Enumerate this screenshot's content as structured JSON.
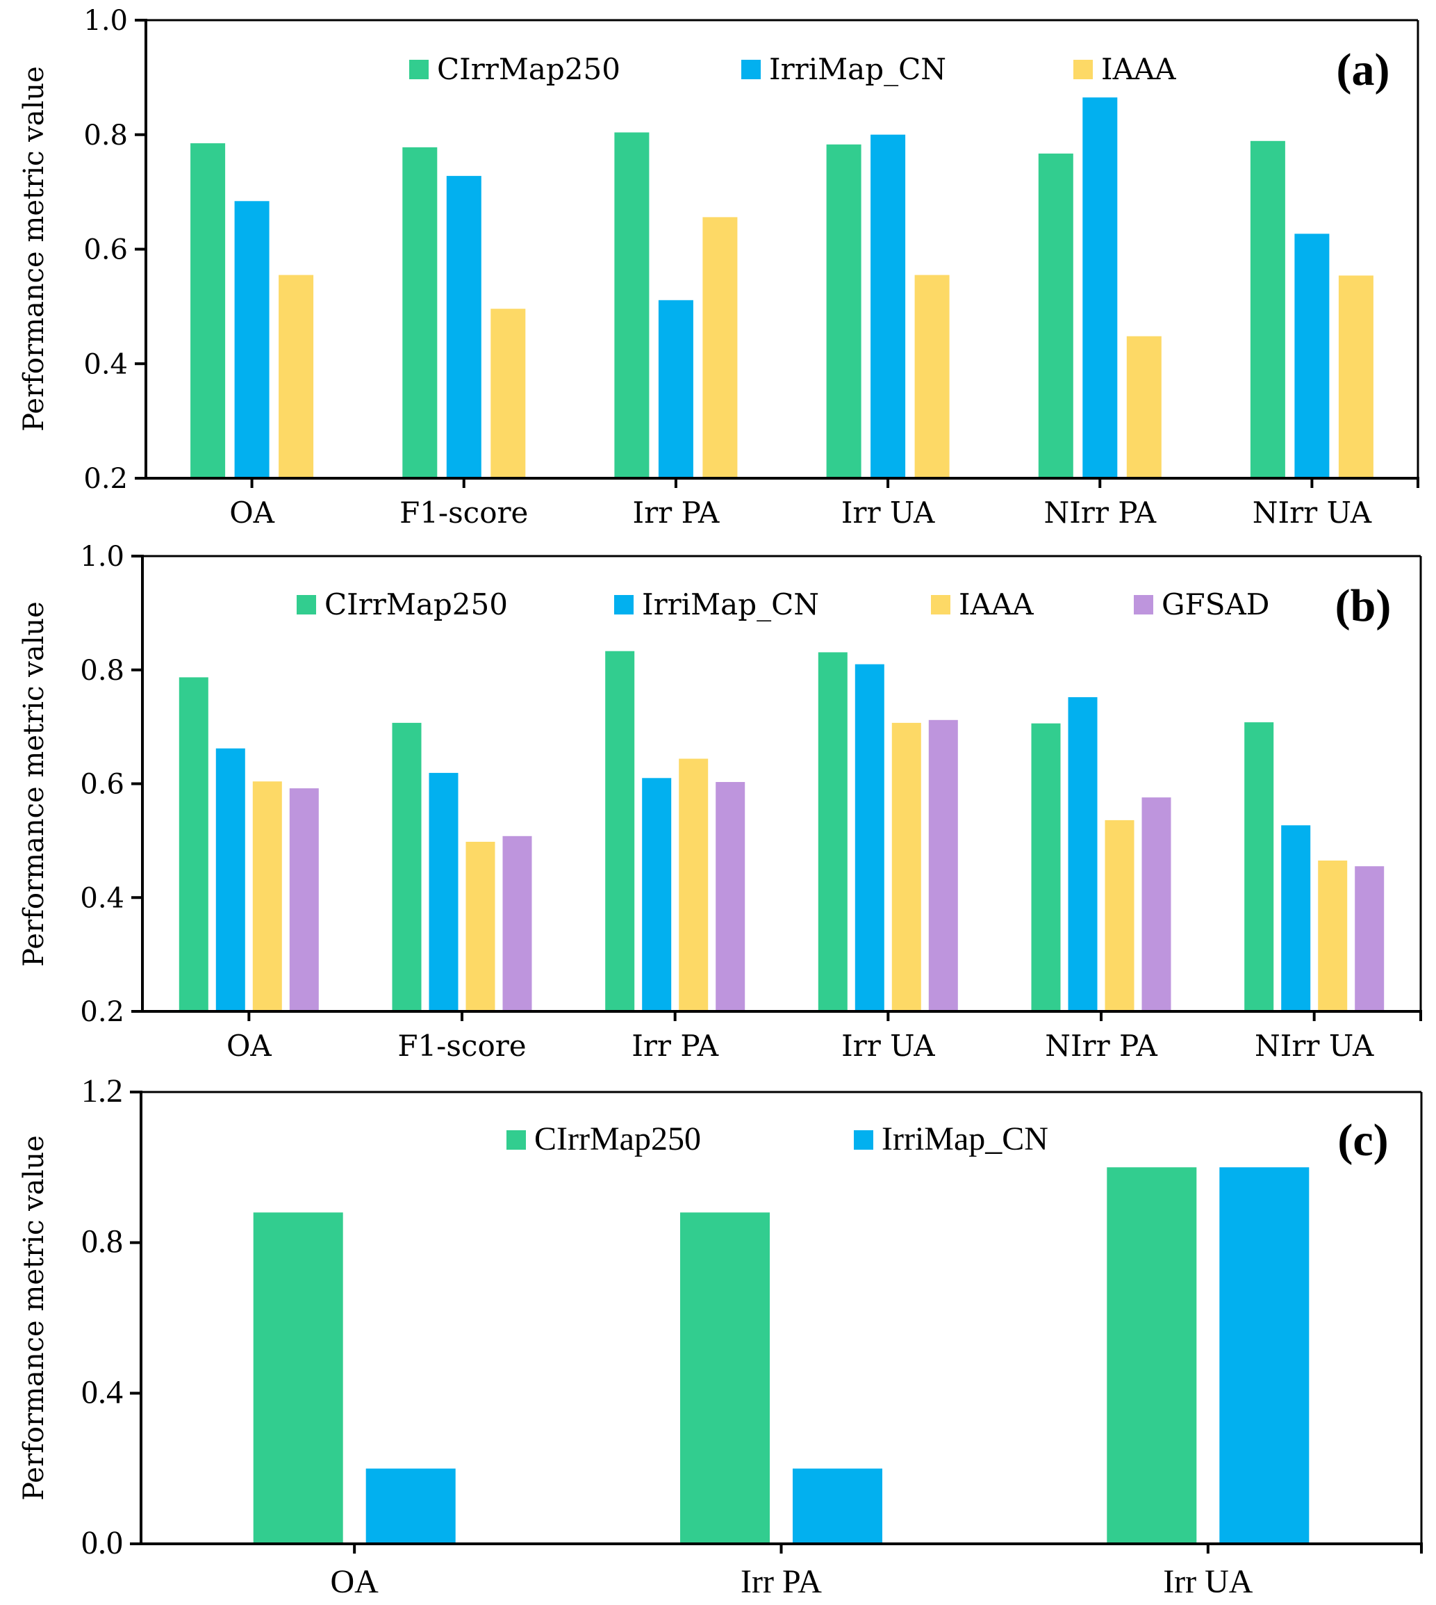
{
  "chart_data": [
    {
      "type": "bar",
      "panel_tag": "(a)",
      "title": "",
      "xlabel": "",
      "ylabel": "Performance metric value",
      "ylim": [
        0.2,
        1.0
      ],
      "yticks": [
        "0.2",
        "0.4",
        "0.6",
        "0.8",
        "1.0"
      ],
      "grid": false,
      "legend_position": "top-center",
      "categories": [
        "OA",
        "F1-score",
        "Irr PA",
        "Irr UA",
        "NIrr PA",
        "NIrr UA"
      ],
      "series": [
        {
          "name": "CIrrMap250",
          "color": "#32CD8F",
          "values": [
            0.785,
            0.778,
            0.804,
            0.783,
            0.767,
            0.789
          ]
        },
        {
          "name": "IrriMap_CN",
          "color": "#02B0EF",
          "values": [
            0.684,
            0.728,
            0.511,
            0.8,
            0.865,
            0.627
          ]
        },
        {
          "name": "IAAA",
          "color": "#FDD966",
          "values": [
            0.555,
            0.496,
            0.656,
            0.555,
            0.448,
            0.554
          ]
        }
      ]
    },
    {
      "type": "bar",
      "panel_tag": "(b)",
      "title": "",
      "xlabel": "",
      "ylabel": "Performance metric value",
      "ylim": [
        0.2,
        1.0
      ],
      "yticks": [
        "0.2",
        "0.4",
        "0.6",
        "0.8",
        "1.0"
      ],
      "grid": false,
      "legend_position": "top-center",
      "categories": [
        "OA",
        "F1-score",
        "Irr PA",
        "Irr UA",
        "NIrr PA",
        "NIrr UA"
      ],
      "series": [
        {
          "name": "CIrrMap250",
          "color": "#32CD8F",
          "values": [
            0.787,
            0.707,
            0.833,
            0.831,
            0.706,
            0.708
          ]
        },
        {
          "name": "IrriMap_CN",
          "color": "#02B0EF",
          "values": [
            0.662,
            0.619,
            0.61,
            0.81,
            0.752,
            0.527
          ]
        },
        {
          "name": "IAAA",
          "color": "#FDD966",
          "values": [
            0.604,
            0.498,
            0.644,
            0.707,
            0.536,
            0.465
          ]
        },
        {
          "name": "GFSAD",
          "color": "#BE95DD",
          "values": [
            0.592,
            0.508,
            0.603,
            0.712,
            0.576,
            0.455
          ]
        }
      ]
    },
    {
      "type": "bar",
      "panel_tag": "(c)",
      "title": "",
      "xlabel": "",
      "ylabel": "Performance metric value",
      "ylim": [
        0.0,
        1.2
      ],
      "yticks": [
        "0.0",
        "0.4",
        "0.8",
        "1.2"
      ],
      "grid": false,
      "legend_position": "top-center",
      "categories": [
        "OA",
        "Irr PA",
        "Irr UA"
      ],
      "series": [
        {
          "name": "CIrrMap250",
          "color": "#32CD8F",
          "values": [
            0.88,
            0.88,
            1.0
          ]
        },
        {
          "name": "IrriMap_CN",
          "color": "#02B0EF",
          "values": [
            0.2,
            0.2,
            1.0
          ]
        }
      ]
    }
  ]
}
